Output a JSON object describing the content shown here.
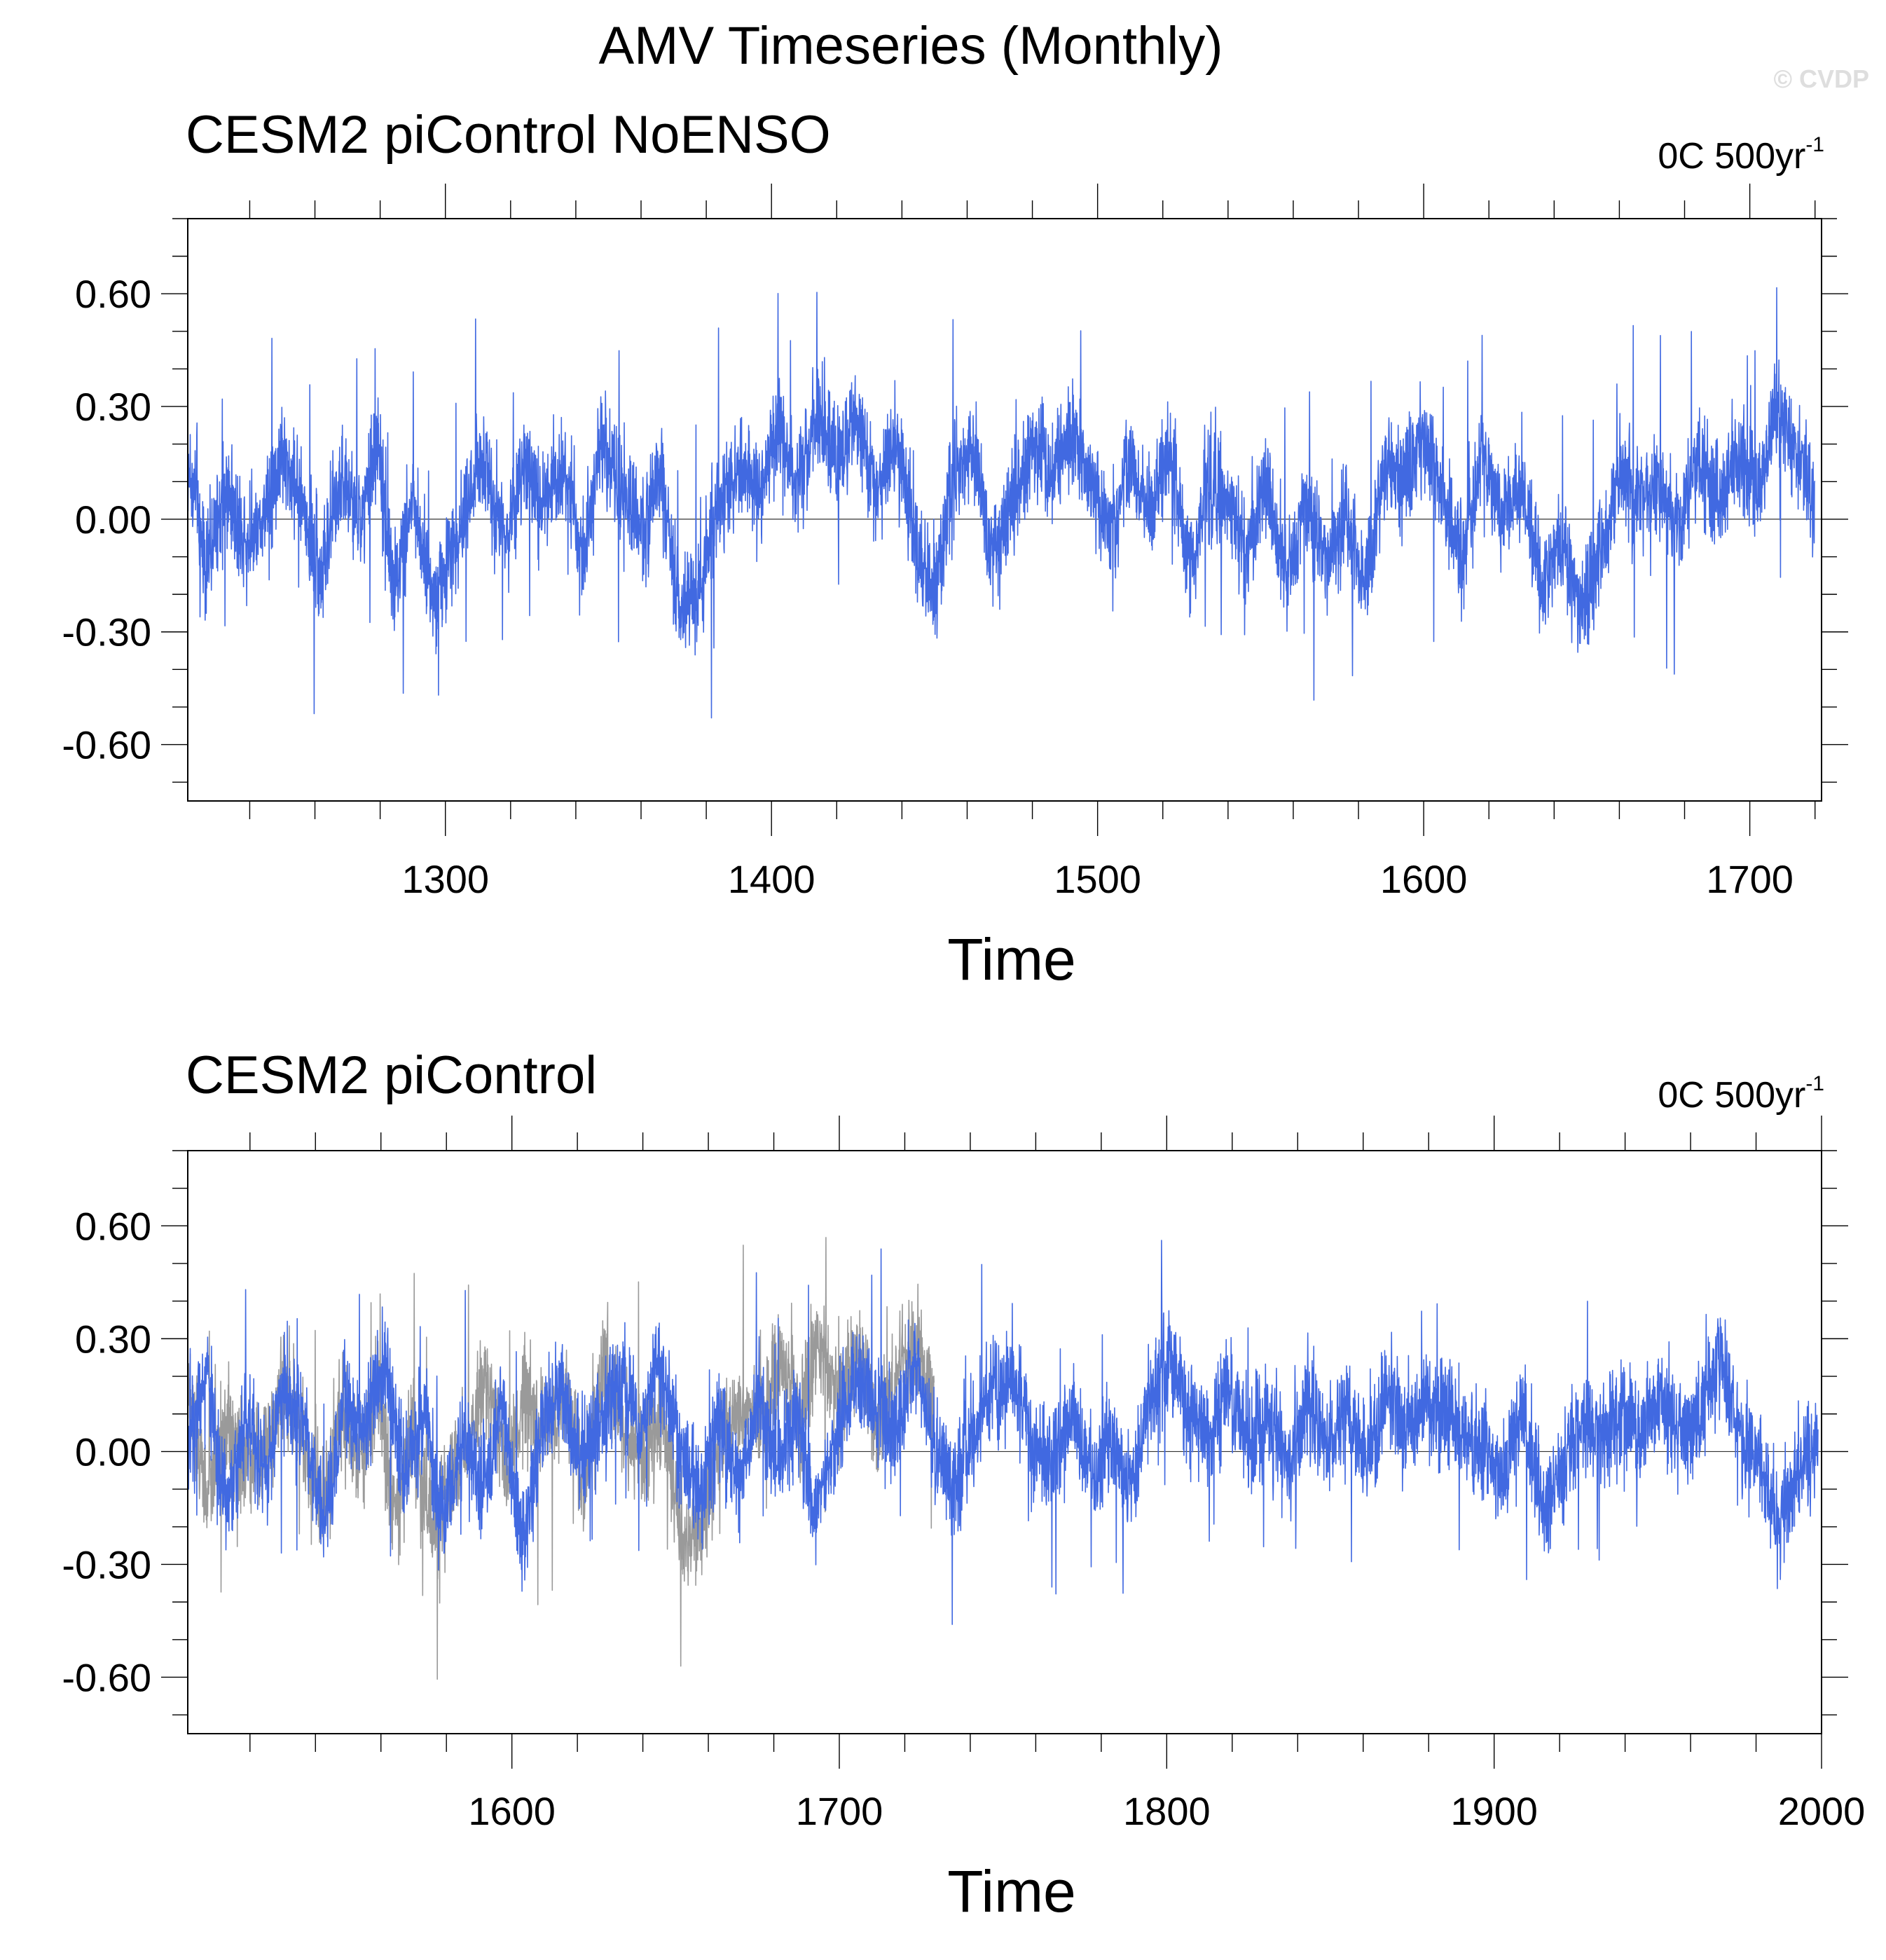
{
  "title": "AMV Timeseries (Monthly)",
  "credit": "© CVDP",
  "colors": {
    "series": "#4169e1",
    "overlay": "#9a9a9a",
    "axis": "#000000",
    "zero": "#000000"
  },
  "chart_data": [
    {
      "type": "line",
      "title": "CESM2 piControl NoENSO",
      "trend_label": "0C 500yr",
      "trend_exp": "-1",
      "xlabel": "Time",
      "ylabel": "",
      "xlim": [
        1221,
        1722
      ],
      "ylim": [
        -0.75,
        0.8
      ],
      "xticks": [
        1300,
        1400,
        1500,
        1600,
        1700
      ],
      "yticks": [
        -0.6,
        -0.3,
        0.0,
        0.3,
        0.6
      ],
      "ytick_labels": [
        "-0.60",
        "-0.30",
        "0.00",
        "0.30",
        "0.60"
      ],
      "grid": false,
      "series": [
        {
          "color": "#4169e1",
          "x": [
            1221,
            1227,
            1233,
            1238,
            1245,
            1250,
            1256,
            1262,
            1268,
            1274,
            1279,
            1284,
            1290,
            1296,
            1300,
            1306,
            1312,
            1318,
            1324,
            1330,
            1336,
            1342,
            1348,
            1354,
            1360,
            1366,
            1372,
            1378,
            1384,
            1390,
            1396,
            1402,
            1408,
            1414,
            1420,
            1426,
            1432,
            1438,
            1444,
            1450,
            1456,
            1462,
            1468,
            1474,
            1480,
            1486,
            1492,
            1498,
            1504,
            1510,
            1516,
            1522,
            1528,
            1534,
            1540,
            1546,
            1552,
            1558,
            1564,
            1570,
            1576,
            1582,
            1588,
            1594,
            1600,
            1606,
            1612,
            1618,
            1624,
            1630,
            1636,
            1642,
            1648,
            1654,
            1660,
            1666,
            1672,
            1678,
            1684,
            1690,
            1696,
            1702,
            1708,
            1714,
            1720
          ],
          "y": [
            0.15,
            -0.12,
            0.08,
            -0.05,
            0.02,
            0.18,
            0.05,
            -0.15,
            0.12,
            -0.02,
            0.2,
            -0.18,
            0.05,
            -0.22,
            -0.12,
            0.02,
            0.18,
            -0.05,
            0.12,
            0.05,
            0.15,
            -0.1,
            0.22,
            0.05,
            -0.02,
            0.1,
            -0.25,
            -0.18,
            0.05,
            0.12,
            0.08,
            0.25,
            0.1,
            0.3,
            0.15,
            0.28,
            0.05,
            0.22,
            -0.05,
            -0.2,
            0.1,
            0.18,
            -0.1,
            0.05,
            0.2,
            0.12,
            0.22,
            0.1,
            -0.05,
            0.15,
            0.02,
            0.18,
            -0.12,
            0.1,
            0.05,
            -0.08,
            0.1,
            -0.15,
            0.05,
            -0.12,
            0.02,
            -0.18,
            0.15,
            0.1,
            0.22,
            0.05,
            -0.1,
            0.18,
            0.02,
            0.1,
            -0.18,
            -0.05,
            -0.25,
            -0.1,
            0.12,
            0.05,
            0.1,
            -0.02,
            0.15,
            0.02,
            0.18,
            0.05,
            0.3,
            0.18,
            0.05
          ]
        }
      ]
    },
    {
      "type": "line",
      "title": "CESM2 piControl",
      "trend_label": "0C 500yr",
      "trend_exp": "-1",
      "xlabel": "Time",
      "ylabel": "",
      "xlim": [
        1501,
        2000
      ],
      "ylim": [
        -0.75,
        0.8
      ],
      "xticks": [
        1600,
        1700,
        1800,
        1900,
        2000
      ],
      "yticks": [
        -0.6,
        -0.3,
        0.0,
        0.3,
        0.6
      ],
      "ytick_labels": [
        "-0.60",
        "-0.30",
        "0.00",
        "0.30",
        "0.60"
      ],
      "grid": false,
      "series": [
        {
          "color": "#9a9a9a",
          "x": [
            1501,
            1507,
            1513,
            1518,
            1525,
            1530,
            1536,
            1542,
            1548,
            1554,
            1559,
            1564,
            1570,
            1576,
            1580,
            1586,
            1592,
            1598,
            1604,
            1610,
            1616,
            1622,
            1628,
            1634,
            1640,
            1646,
            1652,
            1658,
            1664,
            1670,
            1676,
            1682,
            1688,
            1694,
            1700,
            1706,
            1712,
            1718,
            1724,
            1729
          ],
          "y": [
            0.15,
            -0.12,
            0.08,
            -0.05,
            0.02,
            0.18,
            0.05,
            -0.15,
            0.12,
            -0.02,
            0.2,
            -0.18,
            0.05,
            -0.22,
            -0.12,
            0.02,
            0.18,
            -0.05,
            0.12,
            0.05,
            0.15,
            -0.1,
            0.22,
            0.05,
            -0.02,
            0.1,
            -0.25,
            -0.18,
            0.05,
            0.12,
            0.08,
            0.25,
            0.1,
            0.3,
            0.15,
            0.28,
            0.05,
            0.22,
            0.3,
            0.1
          ]
        },
        {
          "color": "#4169e1",
          "x": [
            1501,
            1507,
            1513,
            1519,
            1525,
            1531,
            1537,
            1543,
            1549,
            1555,
            1561,
            1567,
            1573,
            1579,
            1585,
            1591,
            1597,
            1603,
            1609,
            1615,
            1621,
            1627,
            1633,
            1639,
            1645,
            1651,
            1657,
            1663,
            1669,
            1675,
            1681,
            1687,
            1693,
            1699,
            1705,
            1711,
            1717,
            1723,
            1729,
            1735,
            1741,
            1747,
            1753,
            1759,
            1765,
            1771,
            1777,
            1783,
            1789,
            1795,
            1801,
            1807,
            1813,
            1819,
            1825,
            1831,
            1837,
            1843,
            1849,
            1855,
            1861,
            1867,
            1873,
            1879,
            1885,
            1891,
            1897,
            1903,
            1909,
            1915,
            1921,
            1927,
            1933,
            1939,
            1945,
            1951,
            1957,
            1963,
            1969,
            1975,
            1981,
            1987,
            1993,
            1999
          ],
          "y": [
            0.05,
            0.2,
            -0.15,
            0.1,
            -0.05,
            0.18,
            0.02,
            -0.2,
            0.15,
            0.05,
            0.25,
            -0.05,
            0.1,
            -0.18,
            0.02,
            -0.1,
            0.12,
            -0.25,
            0.05,
            0.18,
            -0.02,
            0.1,
            0.2,
            0.05,
            0.22,
            0.02,
            -0.12,
            0.08,
            -0.1,
            0.15,
            -0.05,
            0.1,
            -0.18,
            0.05,
            0.2,
            0.12,
            0.05,
            0.25,
            0.02,
            -0.1,
            0.05,
            0.18,
            0.2,
            0.02,
            -0.05,
            0.1,
            -0.08,
            0.05,
            -0.12,
            0.15,
            0.25,
            0.1,
            0.05,
            0.18,
            0.02,
            0.1,
            -0.05,
            0.12,
            0.02,
            0.1,
            -0.02,
            0.15,
            0.05,
            0.12,
            0.1,
            0.05,
            0.0,
            -0.05,
            0.1,
            -0.15,
            -0.05,
            0.08,
            0.02,
            0.1,
            0.05,
            0.15,
            0.02,
            0.1,
            0.25,
            0.05,
            -0.02,
            -0.2,
            -0.05,
            0.02
          ]
        }
      ]
    }
  ]
}
